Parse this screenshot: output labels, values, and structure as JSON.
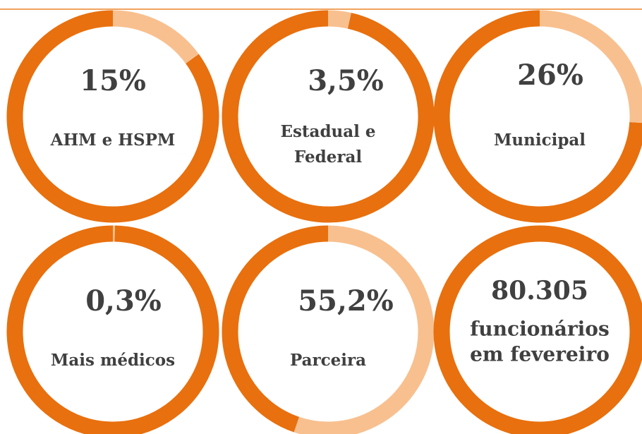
{
  "chart_data": [
    {
      "type": "donut",
      "label": [
        "AHM e HSPM"
      ],
      "values": [
        15
      ],
      "value_labels": [
        "15%"
      ],
      "color": "#f8c08f",
      "ring_color": "#e8700e"
    },
    {
      "type": "donut",
      "label": [
        "Estadual e",
        "Federal"
      ],
      "values": [
        3.5
      ],
      "value_labels": [
        "3,5%"
      ],
      "color": "#f8c08f",
      "ring_color": "#e8700e"
    },
    {
      "type": "donut",
      "label": [
        "Municipal"
      ],
      "values": [
        26
      ],
      "value_labels": [
        "26%"
      ],
      "color": "#f8c08f",
      "ring_color": "#e8700e"
    },
    {
      "type": "donut",
      "label": [
        "Mais médicos"
      ],
      "values": [
        0.3
      ],
      "value_labels": [
        "0,3%"
      ],
      "color": "#f8c08f",
      "ring_color": "#e8700e"
    },
    {
      "type": "donut",
      "label": [
        "Parceira"
      ],
      "values": [
        55.2
      ],
      "value_labels": [
        "55,2%"
      ],
      "color": "#f8c08f",
      "ring_color": "#e8700e"
    },
    {
      "type": "ring",
      "title": "80.305",
      "label": [
        "funcionários",
        "em fevereiro"
      ],
      "ring_color": "#e8700e"
    }
  ]
}
